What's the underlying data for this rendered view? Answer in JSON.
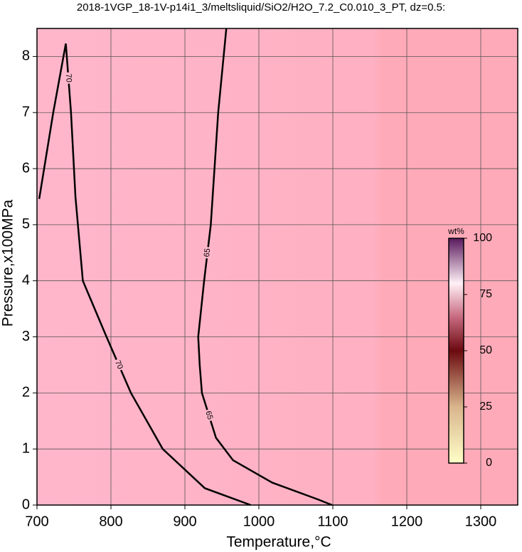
{
  "chart_data": {
    "type": "contour",
    "title": "2018-1VGP_18-1V-p14i1_3/meltsliquid/SiO2/H2O_7.2_C0.010_3_PT, dz=0.5:",
    "x_label": "Temperature,°C",
    "y_label": "Pressure,x100MPa",
    "xlim": [
      700,
      1350
    ],
    "ylim": [
      0,
      8.5
    ],
    "xticks": [
      700,
      800,
      900,
      1000,
      1100,
      1200,
      1300
    ],
    "yticks": [
      0,
      1,
      2,
      3,
      4,
      5,
      6,
      7,
      8
    ],
    "grid": true,
    "contours": [
      {
        "level": 65,
        "color": "#000000",
        "x": [
          956,
          945,
          935,
          926,
          918,
          920,
          923,
          942,
          965,
          1018,
          1080,
          1099
        ],
        "y": [
          8.5,
          7,
          5,
          4,
          3,
          2.5,
          2,
          1.2,
          0.8,
          0.4,
          0.1,
          0
        ]
      },
      {
        "level": 70,
        "color": "#000000",
        "x": [
          703,
          722,
          739,
          746,
          752,
          762,
          794,
          827,
          870,
          927,
          989
        ],
        "y": [
          5.46,
          7,
          8.23,
          7,
          5.5,
          4,
          3,
          2,
          1,
          0.3,
          0
        ]
      }
    ],
    "colorbar": {
      "label": "wt%",
      "lim": [
        0,
        100
      ],
      "ticks": [
        0,
        25,
        50,
        75,
        100
      ]
    }
  }
}
